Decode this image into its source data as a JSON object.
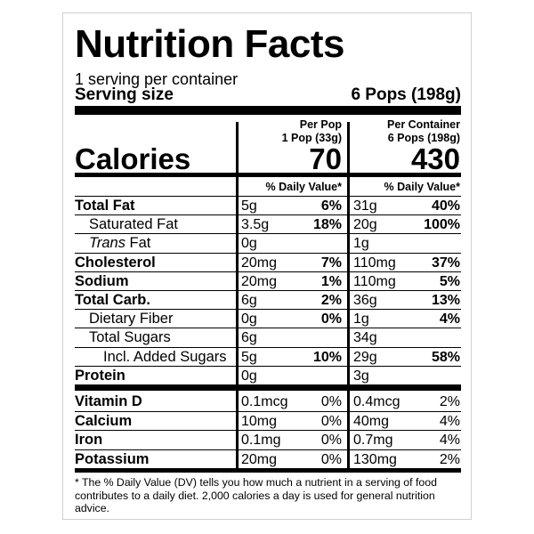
{
  "title": "Nutrition Facts",
  "servings": "1 serving per container",
  "serving_size": {
    "label": "Serving size",
    "value": "6 Pops (198g)"
  },
  "calories_label": "Calories",
  "dv_header": "% Daily Value*",
  "columns": [
    {
      "heading": "Per Pop",
      "subheading": "1 Pop (33g)",
      "calories": "70"
    },
    {
      "heading": "Per Container",
      "subheading": "6 Pops (198g)",
      "calories": "430"
    }
  ],
  "nutrients": [
    {
      "name": "Total Fat",
      "values": [
        {
          "amount": "5g",
          "dv": "6%"
        },
        {
          "amount": "31g",
          "dv": "40%"
        }
      ],
      "children": [
        {
          "name": "Saturated Fat",
          "values": [
            {
              "amount": "3.5g",
              "dv": "18%"
            },
            {
              "amount": "20g",
              "dv": "100%"
            }
          ]
        },
        {
          "name_italic": "Trans",
          "name": "Fat",
          "values": [
            {
              "amount": "0g"
            },
            {
              "amount": "1g"
            }
          ]
        }
      ]
    },
    {
      "name": "Cholesterol",
      "values": [
        {
          "amount": "20mg",
          "dv": "7%"
        },
        {
          "amount": "110mg",
          "dv": "37%"
        }
      ]
    },
    {
      "name": "Sodium",
      "values": [
        {
          "amount": "20mg",
          "dv": "1%"
        },
        {
          "amount": "110mg",
          "dv": "5%"
        }
      ]
    },
    {
      "name": "Total Carb.",
      "values": [
        {
          "amount": "6g",
          "dv": "2%"
        },
        {
          "amount": "36g",
          "dv": "13%"
        }
      ],
      "children": [
        {
          "name": "Dietary Fiber",
          "values": [
            {
              "amount": "0g",
              "dv": "0%"
            },
            {
              "amount": "1g",
              "dv": "4%"
            }
          ]
        },
        {
          "name": "Total Sugars",
          "values": [
            {
              "amount": "6g"
            },
            {
              "amount": "34g"
            }
          ],
          "children": [
            {
              "name": "Incl. Added Sugars",
              "values": [
                {
                  "amount": "5g",
                  "dv": "10%"
                },
                {
                  "amount": "29g",
                  "dv": "58%"
                }
              ]
            }
          ]
        }
      ]
    },
    {
      "name": "Protein",
      "values": [
        {
          "amount": "0g"
        },
        {
          "amount": "3g"
        }
      ]
    }
  ],
  "vitamins_minerals": [
    {
      "name": "Vitamin D",
      "values": [
        {
          "amount": "0.1mcg",
          "dv": "0%"
        },
        {
          "amount": "0.4mcg",
          "dv": "2%"
        }
      ]
    },
    {
      "name": "Calcium",
      "values": [
        {
          "amount": "10mg",
          "dv": "0%"
        },
        {
          "amount": "40mg",
          "dv": "4%"
        }
      ]
    },
    {
      "name": "Iron",
      "values": [
        {
          "amount": "0.1mg",
          "dv": "0%"
        },
        {
          "amount": "0.7mg",
          "dv": "4%"
        }
      ]
    },
    {
      "name": "Potassium",
      "values": [
        {
          "amount": "20mg",
          "dv": "0%"
        },
        {
          "amount": "130mg",
          "dv": "2%"
        }
      ]
    }
  ],
  "footnote": "* The % Daily Value (DV) tells you how much a nutrient in a serving of food contributes to a daily diet. 2,000 calories a day is used for general nutrition advice."
}
